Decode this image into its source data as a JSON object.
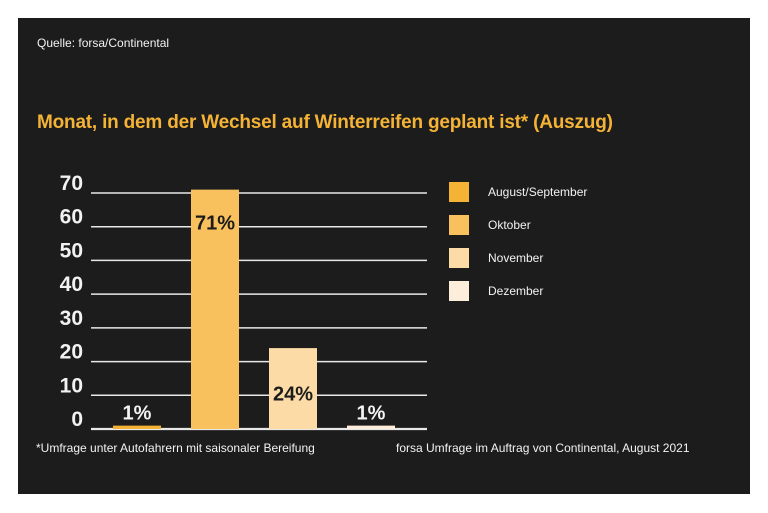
{
  "source": "Quelle: forsa/Continental",
  "footnote": "*Umfrage unter Autofahrern mit saisonaler Bereifung",
  "credit": "forsa Umfrage im Auftrag von Continental, August 2021",
  "colors": {
    "background": "#1c1c1c",
    "title": "#f5b335",
    "grid": "#e8e8e8",
    "text": "#f2f2f2",
    "label_dark": "#1c1c1c"
  },
  "chart_data": {
    "type": "bar",
    "title": "Monat, in dem der Wechsel auf Winterreifen geplant ist* (Auszug)",
    "xlabel": "",
    "ylabel": "",
    "ylim": [
      0,
      70
    ],
    "yticks": [
      0,
      10,
      20,
      30,
      40,
      50,
      60,
      70
    ],
    "ytick_labels": [
      "0",
      "10",
      "20",
      "30",
      "40",
      "50",
      "60",
      "70"
    ],
    "grid": true,
    "legend_position": "right",
    "categories": [
      "August/September",
      "Oktober",
      "November",
      "Dezember"
    ],
    "values": [
      1,
      71,
      24,
      1
    ],
    "data_labels": [
      "1%",
      "71%",
      "24%",
      "1%"
    ],
    "bar_colors": [
      "#f5b335",
      "#f9c15e",
      "#fcdba6",
      "#fdeedb"
    ]
  }
}
